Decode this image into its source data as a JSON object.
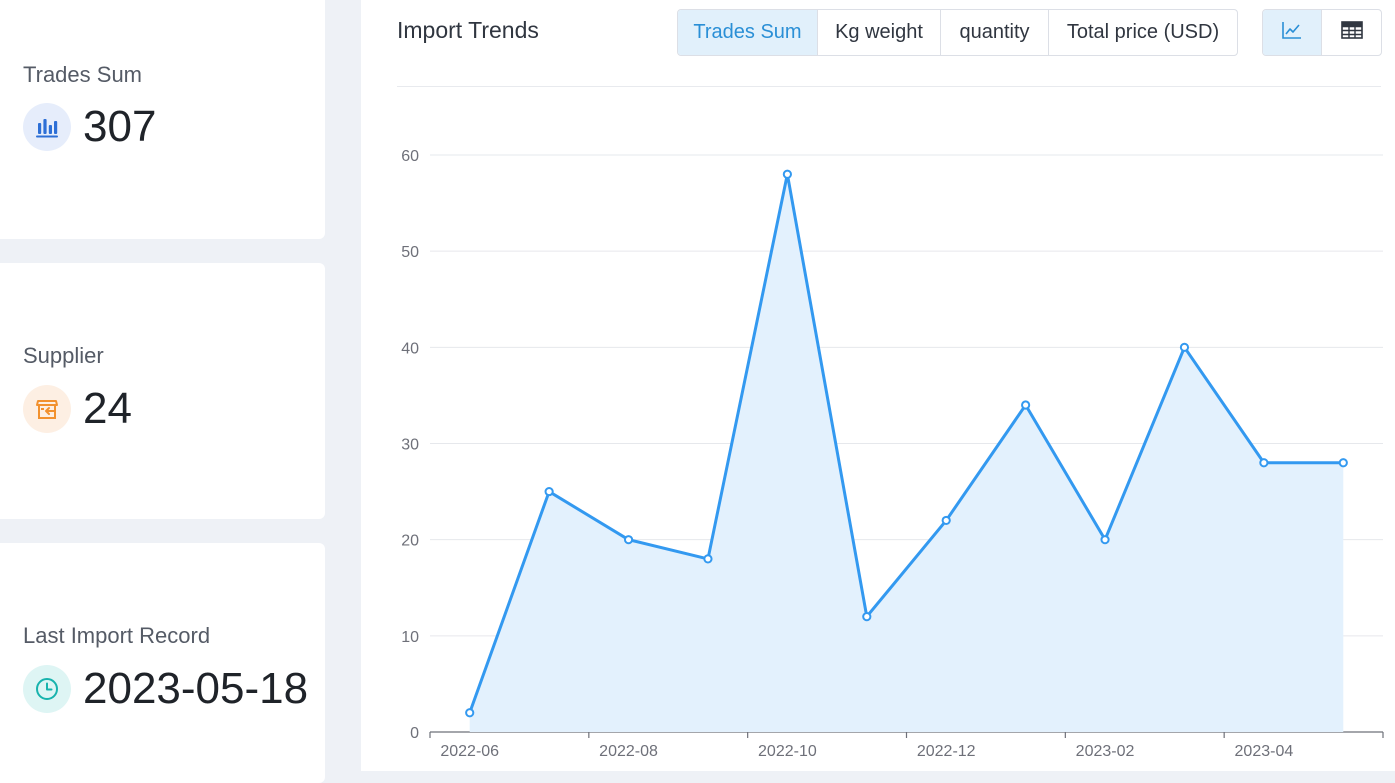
{
  "stats": [
    {
      "label": "Trades Sum",
      "value": "307",
      "icon": "bar-chart-icon",
      "color": "#2d6fd6"
    },
    {
      "label": "Supplier",
      "value": "24",
      "icon": "storefront-icon",
      "color": "#f2912e"
    },
    {
      "label": "Last Import Record",
      "value": "2023-05-18",
      "icon": "clock-icon",
      "color": "#18b3ad"
    }
  ],
  "panel": {
    "title": "Import Trends",
    "tabs": [
      {
        "label": "Trades Sum",
        "active": true
      },
      {
        "label": "Kg weight",
        "active": false
      },
      {
        "label": "quantity",
        "active": false
      },
      {
        "label": "Total price (USD)",
        "active": false
      }
    ],
    "views": [
      {
        "icon": "line-chart-icon",
        "active": true
      },
      {
        "icon": "table-icon",
        "active": false
      }
    ]
  },
  "colors": {
    "accent": "#2a8fd6",
    "line": "#3399f0",
    "area": "#e3f1fd"
  },
  "chart_data": {
    "type": "line",
    "title": "",
    "xlabel": "",
    "ylabel": "",
    "x": [
      "2022-06",
      "2022-07",
      "2022-08",
      "2022-09",
      "2022-10",
      "2022-11",
      "2022-12",
      "2023-01",
      "2023-02",
      "2023-03",
      "2023-04",
      "2023-05"
    ],
    "values": [
      2,
      25,
      20,
      18,
      58,
      12,
      22,
      34,
      20,
      40,
      28,
      28
    ],
    "x_tick_labels": [
      "2022-06",
      "2022-08",
      "2022-10",
      "2022-12",
      "2023-02",
      "2023-04"
    ],
    "y_ticks": [
      0,
      10,
      20,
      30,
      40,
      50,
      60
    ],
    "ylim": [
      0,
      60
    ],
    "grid": true,
    "area_fill": true,
    "legend": "none"
  }
}
